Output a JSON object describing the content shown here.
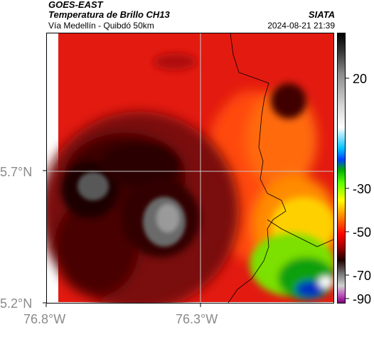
{
  "header": {
    "satellite": "GOES-EAST",
    "product": "Temperatura de Brillo CH13",
    "region": "Vía Medellín - Quibdó 50km",
    "brand": "SIATA",
    "timestamp": "2024-08-21 21:39"
  },
  "axes": {
    "y_ticks": [
      {
        "label": "5.7°N",
        "value": 5.7
      },
      {
        "label": "5.2°N",
        "value": 5.2
      }
    ],
    "x_ticks": [
      {
        "label": "76.8°W",
        "value": -76.8
      },
      {
        "label": "76.3°W",
        "value": -76.3
      }
    ]
  },
  "colorbar": {
    "range": [
      -92,
      34
    ],
    "ticks": [
      {
        "label": "20",
        "value": 20
      },
      {
        "label": "-30",
        "value": -30
      },
      {
        "label": "-50",
        "value": -50
      },
      {
        "label": "-70",
        "value": -70
      },
      {
        "label": "-90",
        "value": -90
      }
    ],
    "stops": [
      {
        "value": 34,
        "color": "#000000"
      },
      {
        "value": 25,
        "color": "#3a3a3a"
      },
      {
        "value": 15,
        "color": "#8c8c8c"
      },
      {
        "value": 0,
        "color": "#d6d6d6"
      },
      {
        "value": -10,
        "color": "#ffffff"
      },
      {
        "value": -20,
        "color": "#00bfff"
      },
      {
        "value": -25,
        "color": "#0040ff"
      },
      {
        "value": -30,
        "color": "#00b000"
      },
      {
        "value": -36,
        "color": "#60ff00"
      },
      {
        "value": -44,
        "color": "#ffff00"
      },
      {
        "value": -52,
        "color": "#ff8000"
      },
      {
        "value": -60,
        "color": "#ff0000"
      },
      {
        "value": -66,
        "color": "#a00000"
      },
      {
        "value": -72,
        "color": "#200000"
      },
      {
        "value": -78,
        "color": "#707070"
      },
      {
        "value": -84,
        "color": "#d0d0d0"
      },
      {
        "value": -88,
        "color": "#c060c0"
      },
      {
        "value": -92,
        "color": "#800080"
      }
    ]
  },
  "colors": {
    "background": "#ffffff",
    "axis": "#000000",
    "tick_label": "#8a8a8a",
    "gridline": "#c8c8c8",
    "border_line": "#000000"
  }
}
